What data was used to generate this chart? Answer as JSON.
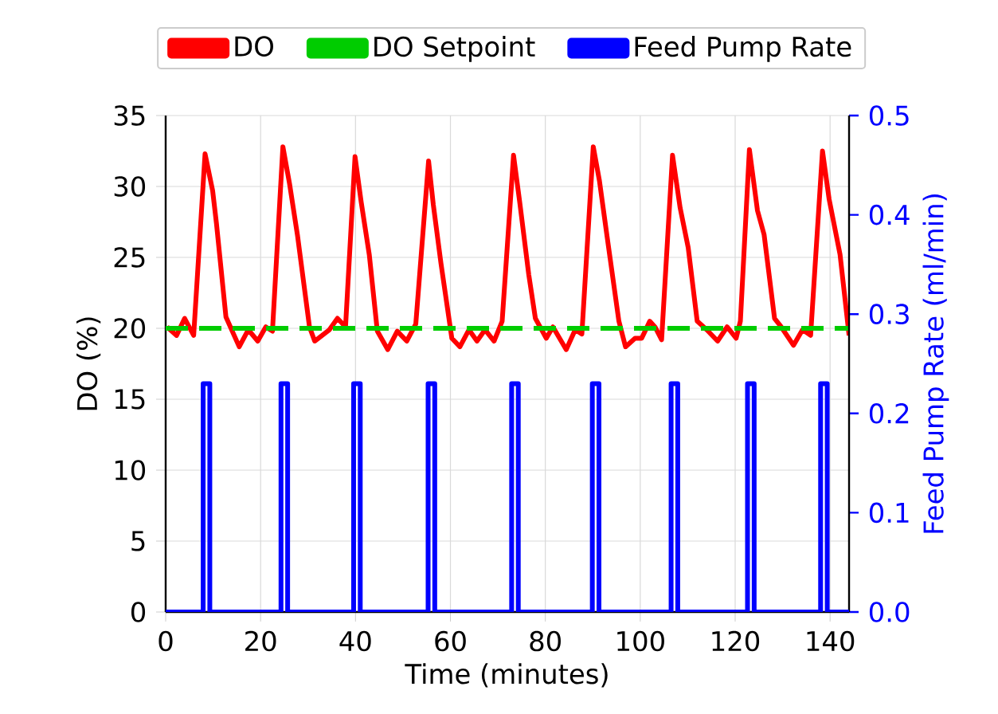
{
  "chart_data": {
    "type": "line",
    "xlabel": "Time (minutes)",
    "ylabel": "DO (%)",
    "y2label": "Feed Pump Rate (ml/min)",
    "xlim": [
      0,
      144
    ],
    "xticks": [
      0,
      20,
      40,
      60,
      80,
      100,
      120,
      140
    ],
    "ylim": [
      0,
      35
    ],
    "yticks": [
      0,
      5,
      10,
      15,
      20,
      25,
      30,
      35
    ],
    "y2lim": [
      0,
      0.5
    ],
    "y2ticks": [
      {
        "value": 0,
        "label": "0.0"
      },
      0.1,
      0.2,
      0.3,
      0.4,
      0.5
    ],
    "grid": true,
    "legend": "top",
    "marker": "none",
    "series": [
      {
        "name": "DO",
        "color": "#ff0000",
        "x": [
          0.3,
          2.3,
          4.0,
          5.9,
          8.3,
          9.9,
          10.7,
          12.7,
          15.5,
          17.4,
          19.4,
          21.1,
          22.5,
          24.7,
          26.1,
          27.8,
          30.3,
          31.4,
          34.5,
          36.2,
          37.9,
          39.9,
          41.2,
          42.9,
          44.6,
          46.8,
          48.8,
          50.8,
          52.7,
          55.4,
          56.4,
          58.0,
          60.3,
          62.0,
          63.9,
          65.6,
          67.3,
          69.2,
          70.9,
          73.3,
          74.6,
          76.5,
          77.9,
          80.2,
          81.6,
          84.4,
          86.3,
          87.7,
          90.1,
          91.4,
          93.0,
          95.5,
          96.9,
          98.9,
          100.3,
          102.0,
          103.1,
          104.5,
          106.8,
          108.4,
          110.1,
          112.0,
          114.0,
          116.3,
          118.3,
          120.2,
          121.1,
          123.0,
          124.7,
          126.1,
          128.3,
          129.7,
          132.3,
          134.2,
          135.9,
          138.4,
          139.8,
          142.1,
          144.0
        ],
        "values": [
          20.1,
          19.5,
          20.7,
          19.5,
          32.3,
          29.7,
          27.4,
          20.8,
          18.7,
          19.9,
          19.1,
          20.1,
          19.8,
          32.8,
          30.2,
          26.5,
          20.1,
          19.1,
          19.9,
          20.7,
          20.1,
          32.1,
          28.9,
          25.2,
          19.8,
          18.5,
          19.8,
          19.1,
          20.3,
          31.8,
          28.7,
          24.6,
          19.3,
          18.7,
          19.9,
          19.1,
          19.9,
          19.1,
          20.5,
          32.2,
          28.9,
          23.8,
          20.7,
          19.3,
          20.1,
          18.5,
          19.9,
          19.6,
          32.8,
          30.4,
          26.5,
          20.5,
          18.7,
          19.3,
          19.3,
          20.5,
          20.1,
          19.2,
          32.2,
          28.5,
          25.7,
          20.5,
          19.9,
          19.1,
          20.1,
          19.3,
          20.5,
          32.6,
          28.3,
          26.6,
          20.7,
          20.1,
          18.8,
          19.9,
          19.5,
          32.5,
          29.1,
          25.2,
          19.5
        ]
      },
      {
        "name": "DO Setpoint",
        "color": "#00cc00",
        "line_style": "dashed",
        "x": [
          0,
          144
        ],
        "values": [
          20,
          20
        ]
      },
      {
        "name": "Feed Pump Rate",
        "color": "#0000ff",
        "axis": "y2",
        "x": [
          0,
          7.9,
          7.9,
          9.3,
          9.3,
          24.3,
          24.3,
          25.7,
          25.7,
          39.6,
          39.6,
          41.0,
          41.0,
          55.3,
          55.3,
          56.7,
          56.7,
          72.9,
          72.9,
          74.3,
          74.3,
          89.9,
          89.9,
          91.3,
          91.3,
          106.5,
          106.5,
          107.9,
          107.9,
          122.6,
          122.6,
          124.0,
          124.0,
          138.0,
          138.0,
          139.4,
          139.4,
          144
        ],
        "values": [
          0,
          0,
          0.23,
          0.23,
          0,
          0,
          0.23,
          0.23,
          0,
          0,
          0.23,
          0.23,
          0,
          0,
          0.23,
          0.23,
          0,
          0,
          0.23,
          0.23,
          0,
          0,
          0.23,
          0.23,
          0,
          0,
          0.23,
          0.23,
          0,
          0,
          0.23,
          0.23,
          0,
          0,
          0.23,
          0.23,
          0,
          0
        ]
      }
    ]
  }
}
